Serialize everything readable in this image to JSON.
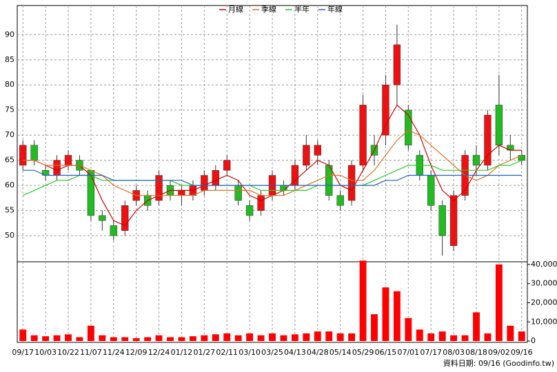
{
  "chart_data": {
    "type": "candlestick",
    "legend": "top",
    "grid": true,
    "up_color": "#ee1111",
    "down_color": "#22bb22",
    "volume_color": "#ff0000",
    "footer": "資料日期: 09/16 (Goodinfo.tw)",
    "categories": [
      "09/17",
      null,
      "10/03",
      null,
      "10/22",
      null,
      "11/07",
      null,
      "11/24",
      null,
      "12/09",
      null,
      "12/24",
      null,
      "01/12",
      null,
      "01/27",
      null,
      "02/11",
      null,
      "03/10",
      null,
      "03/25",
      null,
      "04/13",
      null,
      "04/28",
      null,
      "05/14",
      null,
      "05/29",
      null,
      "06/15",
      null,
      "07/01",
      null,
      "07/17",
      null,
      "08/03",
      null,
      "08/18",
      null,
      "09/02",
      null,
      "09/16"
    ],
    "open": [
      64,
      68,
      63,
      62,
      64,
      65,
      63,
      54,
      52,
      51,
      57,
      58,
      57,
      60,
      58,
      58,
      59,
      60,
      63,
      60,
      56,
      55,
      58,
      60,
      60,
      64,
      66,
      64,
      58,
      57,
      64,
      68,
      70,
      80,
      75,
      66,
      62,
      56,
      48,
      58,
      66,
      64,
      76,
      68,
      66
    ],
    "high": [
      69,
      69,
      64,
      66,
      67,
      66,
      63,
      55,
      53,
      57,
      60,
      59,
      63,
      61,
      60,
      61,
      63,
      64,
      66,
      61,
      57,
      59,
      63,
      61,
      65,
      70,
      69,
      65,
      59,
      65,
      78,
      70,
      82,
      92,
      76,
      67,
      63,
      57,
      59,
      67,
      68,
      75,
      82,
      70,
      67
    ],
    "low": [
      63,
      64,
      61,
      61,
      63,
      62,
      53,
      51,
      49,
      50,
      56,
      55,
      56,
      57,
      56,
      57,
      58,
      59,
      62,
      56,
      53,
      54,
      57,
      58,
      59,
      63,
      64,
      57,
      55,
      56,
      63,
      64,
      68,
      76,
      67,
      61,
      55,
      46,
      47,
      57,
      62,
      63,
      66,
      65,
      64
    ],
    "close": [
      68,
      65,
      62,
      65,
      66,
      63,
      54,
      53,
      50,
      56,
      59,
      56,
      62,
      58,
      59,
      60,
      62,
      63,
      65,
      57,
      54,
      58,
      62,
      59,
      64,
      68,
      68,
      58,
      56,
      64,
      76,
      66,
      80,
      88,
      68,
      62,
      56,
      50,
      58,
      66,
      64,
      74,
      68,
      67,
      65
    ],
    "volume": [
      6000,
      3000,
      2500,
      3000,
      3500,
      2000,
      8000,
      3000,
      2000,
      2000,
      1500,
      2000,
      3000,
      2000,
      2000,
      2500,
      3000,
      3500,
      4000,
      3000,
      4000,
      3000,
      4000,
      3000,
      3500,
      4000,
      5000,
      5000,
      4000,
      4000,
      42000,
      14000,
      28000,
      26000,
      12000,
      6000,
      4000,
      5000,
      3000,
      3000,
      15000,
      4000,
      40000,
      8000,
      5000
    ],
    "series": [
      {
        "name": "月線",
        "color": "#cc0000",
        "values": [
          65,
          65,
          64,
          63,
          64,
          64,
          62,
          57,
          53,
          52,
          55,
          57,
          58,
          59,
          59,
          59,
          60,
          61,
          62,
          61,
          58,
          57,
          58,
          59,
          61,
          63,
          65,
          64,
          60,
          59,
          63,
          67,
          72,
          76,
          74,
          70,
          64,
          59,
          57,
          59,
          63,
          66,
          68,
          67,
          67
        ]
      },
      {
        "name": "季線",
        "color": "#e07020",
        "values": [
          65,
          65,
          64,
          64,
          64,
          64,
          63,
          62,
          60,
          59,
          58,
          58,
          58,
          58,
          58,
          58,
          59,
          59,
          59,
          59,
          59,
          58,
          58,
          58,
          59,
          60,
          61,
          62,
          62,
          61,
          61,
          63,
          66,
          69,
          71,
          70,
          68,
          66,
          64,
          62,
          61,
          62,
          64,
          65,
          66
        ]
      },
      {
        "name": "半年",
        "color": "#22cc22",
        "values": [
          58,
          59,
          60,
          61,
          61,
          62,
          62,
          61,
          61,
          61,
          61,
          61,
          61,
          61,
          60,
          60,
          60,
          60,
          60,
          60,
          60,
          59,
          59,
          59,
          59,
          59,
          60,
          60,
          60,
          60,
          60,
          61,
          62,
          63,
          64,
          64,
          64,
          63,
          63,
          63,
          63,
          63,
          64,
          64,
          65
        ]
      },
      {
        "name": "年線",
        "color": "#1f5fbf",
        "values": [
          63,
          63,
          62,
          62,
          62,
          62,
          62,
          62,
          61,
          61,
          61,
          61,
          61,
          61,
          61,
          60,
          60,
          60,
          60,
          60,
          60,
          60,
          60,
          60,
          60,
          60,
          60,
          60,
          60,
          60,
          60,
          60,
          61,
          61,
          62,
          62,
          62,
          62,
          62,
          62,
          62,
          62,
          62,
          62,
          62
        ]
      }
    ],
    "ylim": [
      44.8,
      95.8
    ],
    "yticks": [
      50,
      55,
      60,
      65,
      70,
      75,
      80,
      85,
      90
    ],
    "y2lim": [
      -700,
      41400
    ],
    "y2ticks": [
      0,
      {
        "value": 10000,
        "label": "10,000"
      },
      {
        "value": 20000,
        "label": "20,000"
      },
      {
        "value": 30000,
        "label": "30,000"
      },
      {
        "value": 40000,
        "label": "40,000"
      }
    ]
  }
}
